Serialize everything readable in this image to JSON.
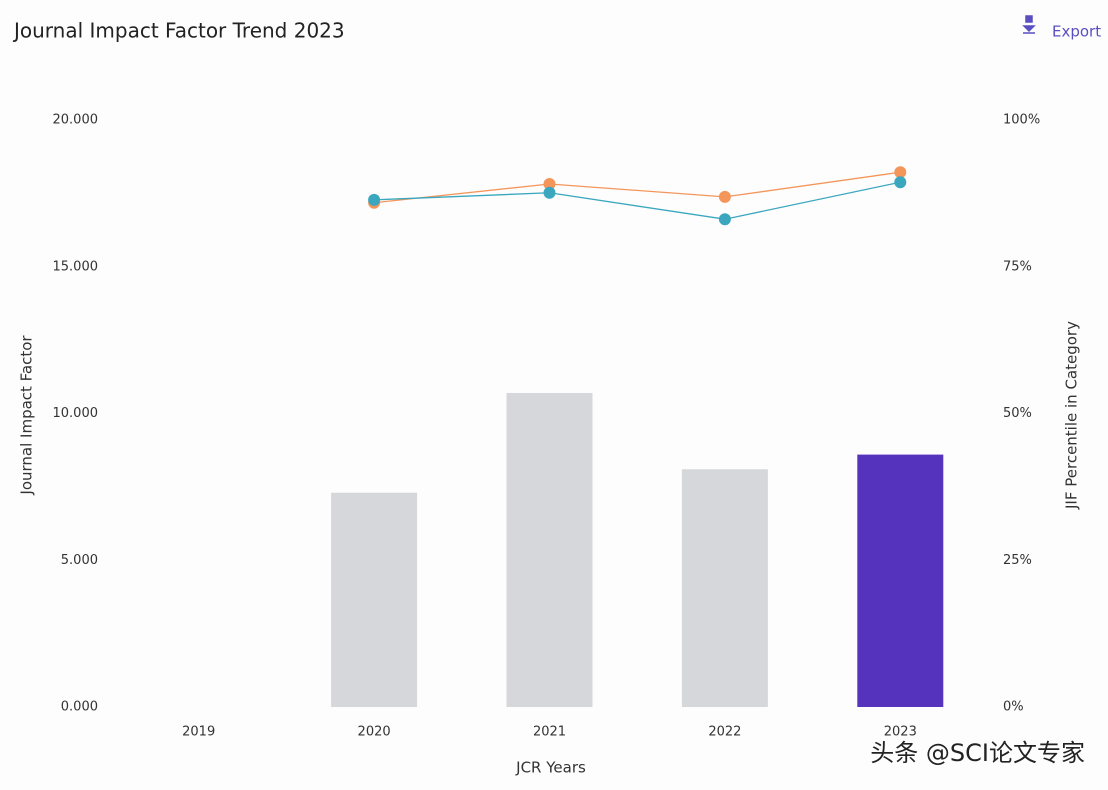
{
  "chart_data": {
    "type": "bar",
    "title": "Journal Impact Factor Trend 2023",
    "export_label": "Export",
    "watermark": "头条 @SCI论文专家",
    "x_label": "JCR Years",
    "y_label": "Journal Impact Factor",
    "y2_label": "JIF Percentile in Category",
    "categories": [
      "2019",
      "2020",
      "2021",
      "2022",
      "2023"
    ],
    "values": [
      null,
      7.3,
      10.7,
      8.1,
      8.6
    ],
    "colors": [
      "#d6d7db",
      "#d6d7db",
      "#d6d7db",
      "#d6d7db",
      "#5533bd"
    ],
    "ylim": [
      0,
      20
    ],
    "yticks": [
      {
        "value": 0,
        "label": "0.000"
      },
      {
        "value": 5,
        "label": "5.000"
      },
      {
        "value": 10,
        "label": "10.000"
      },
      {
        "value": 15,
        "label": "15.000"
      },
      {
        "value": 20,
        "label": "20.000"
      }
    ],
    "y2lim": [
      0,
      100
    ],
    "y2ticks": [
      {
        "value": 0,
        "label": "0%"
      },
      {
        "value": 25,
        "label": "25%"
      },
      {
        "value": 50,
        "label": "50%"
      },
      {
        "value": 75,
        "label": "75%"
      },
      {
        "value": 100,
        "label": "100%"
      }
    ],
    "series": [
      {
        "color": "#f4965a",
        "axis": "y2",
        "values": [
          null,
          85.9,
          89.1,
          86.9,
          91.1
        ]
      },
      {
        "color": "#3aa7be",
        "axis": "y2",
        "values": [
          null,
          86.4,
          87.6,
          83.1,
          89.4
        ]
      }
    ]
  }
}
